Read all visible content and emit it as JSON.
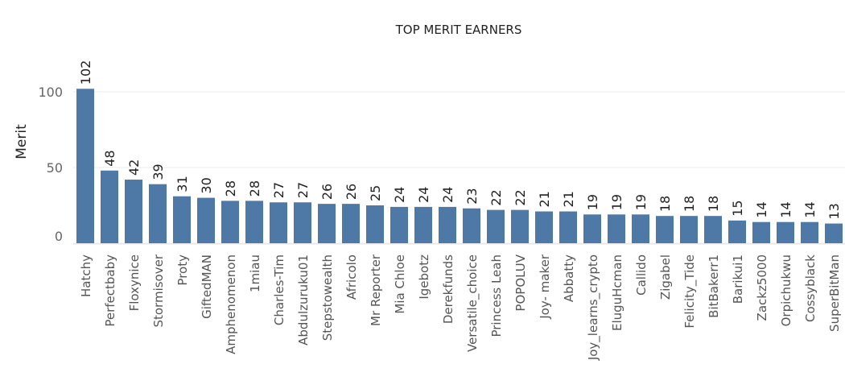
{
  "chart_data": {
    "type": "bar",
    "title": "TOP MERIT EARNERS",
    "xlabel": "",
    "ylabel": "Merit",
    "ylim": [
      -15,
      130
    ],
    "yticks": [
      0,
      50,
      100
    ],
    "grid": true,
    "bar_color": "#4e79a7",
    "categories": [
      "Hatchy",
      "Perfectbaby",
      "Floxynice",
      "Stormisover",
      "Proty",
      "GiftedMAN",
      "Amphenomenon",
      "1miau",
      "Charles-Tim",
      "Abdulzuruku01",
      "Stepstowealth",
      "Africolo",
      "Mr Reporter",
      "Mia Chloe",
      "Igebotz",
      "Derekfunds",
      "Versatile_choice",
      "Princess Leah",
      "POPOLUV",
      "Joy- maker",
      "Abbatty",
      "Joy_learns_crypto",
      "EluguHcman",
      "Callido",
      "Zigabel",
      "Felicity_Tide",
      "BitBakerr1",
      "Barikui1",
      "Zackz5000",
      "Orpichukwu",
      "Cossyblack",
      "SuperBitMan"
    ],
    "values": [
      102,
      48,
      42,
      39,
      31,
      30,
      28,
      28,
      27,
      27,
      26,
      26,
      25,
      24,
      24,
      24,
      23,
      22,
      22,
      21,
      21,
      19,
      19,
      19,
      18,
      18,
      18,
      15,
      14,
      14,
      14,
      13
    ]
  }
}
